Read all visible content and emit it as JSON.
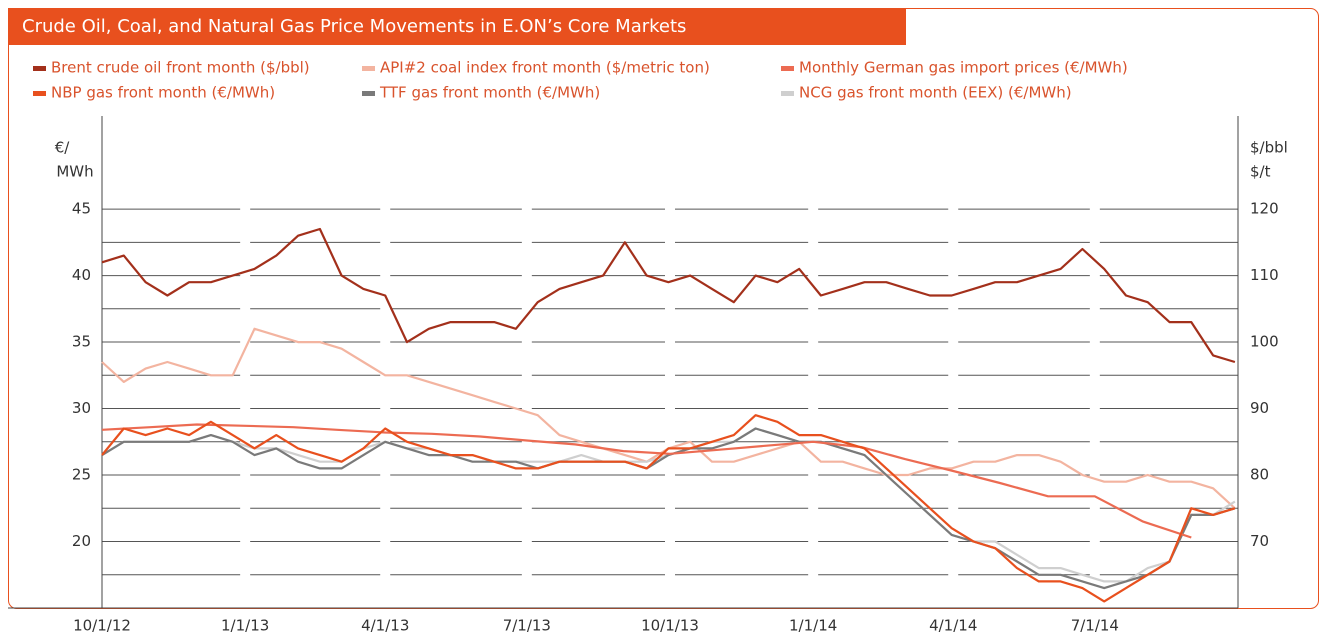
{
  "chart_data": {
    "type": "line",
    "title": "Crude Oil, Coal, and Natural Gas Price Movements in E.ON’s Core Markets",
    "ylabel_lines": [
      "€/",
      "MWh"
    ],
    "y2label_lines": [
      "$/bbl",
      "$/t"
    ],
    "legend": "top",
    "grid": true,
    "xlim": [
      "2012-10-01",
      "2014-10-01"
    ],
    "xticks": [
      {
        "value": "2012-10-01",
        "label": "10/1/12"
      },
      {
        "value": "2013-01-01",
        "label": "1/1/13"
      },
      {
        "value": "2013-04-01",
        "label": "4/1/13"
      },
      {
        "value": "2013-07-01",
        "label": "7/1/13"
      },
      {
        "value": "2013-10-01",
        "label": "10/1/13"
      },
      {
        "value": "2014-01-01",
        "label": "1/1/14"
      },
      {
        "value": "2014-04-01",
        "label": "4/1/14"
      },
      {
        "value": "2014-07-01",
        "label": "7/1/14"
      }
    ],
    "ylim": [
      15,
      52
    ],
    "yticks": [
      20,
      25,
      30,
      35,
      40,
      45
    ],
    "minor_grid": [
      17.5,
      22.5,
      27.5,
      32.5,
      37.5,
      42.5
    ],
    "y2lim": [
      60,
      134
    ],
    "y2ticks": [
      70,
      80,
      90,
      100,
      110,
      120
    ],
    "x": [
      "2012-10-01",
      "2012-10-15",
      "2012-10-29",
      "2012-11-12",
      "2012-11-26",
      "2012-12-10",
      "2012-12-24",
      "2013-01-07",
      "2013-01-21",
      "2013-02-04",
      "2013-02-18",
      "2013-03-04",
      "2013-03-18",
      "2013-04-01",
      "2013-04-15",
      "2013-04-29",
      "2013-05-13",
      "2013-05-27",
      "2013-06-10",
      "2013-06-24",
      "2013-07-08",
      "2013-07-22",
      "2013-08-05",
      "2013-08-19",
      "2013-09-02",
      "2013-09-16",
      "2013-09-30",
      "2013-10-14",
      "2013-10-28",
      "2013-11-11",
      "2013-11-25",
      "2013-12-09",
      "2013-12-23",
      "2014-01-06",
      "2014-01-20",
      "2014-02-03",
      "2014-02-17",
      "2014-03-03",
      "2014-03-17",
      "2014-03-31",
      "2014-04-14",
      "2014-04-28",
      "2014-05-12",
      "2014-05-26",
      "2014-06-09",
      "2014-06-23",
      "2014-07-07",
      "2014-07-21",
      "2014-08-04",
      "2014-08-18",
      "2014-09-01",
      "2014-09-15",
      "2014-09-29"
    ],
    "series": [
      {
        "name": "Brent crude oil front month ($/bbl)",
        "color": "#a3301b",
        "axis": "y2",
        "values": [
          112,
          113,
          109,
          107,
          109,
          109,
          110,
          111,
          113,
          116,
          117,
          110,
          108,
          107,
          100,
          102,
          103,
          103,
          103,
          102,
          106,
          108,
          109,
          110,
          115,
          110,
          109,
          110,
          108,
          106,
          110,
          109,
          111,
          107,
          108,
          109,
          109,
          108,
          107,
          107,
          108,
          109,
          109,
          110,
          111,
          114,
          111,
          107,
          106,
          103,
          103,
          98,
          97
        ]
      },
      {
        "name": "API#2 coal index front month ($/metric ton)",
        "color": "#f3b4a0",
        "axis": "y2",
        "values": [
          97,
          94,
          96,
          97,
          96,
          95,
          95,
          102,
          101,
          100,
          100,
          99,
          97,
          95,
          95,
          94,
          93,
          92,
          91,
          90,
          89,
          86,
          85,
          84,
          83,
          82,
          84,
          85,
          82,
          82,
          83,
          84,
          85,
          82,
          82,
          81,
          80,
          80,
          81,
          81,
          82,
          82,
          83,
          83,
          82,
          80,
          79,
          79,
          80,
          79,
          79,
          78,
          75
        ]
      },
      {
        "name": "Monthly German gas import prices (€/MWh)",
        "color": "#ec6b52",
        "x": [
          "2012-10-01",
          "2012-11-01",
          "2012-12-01",
          "2013-01-01",
          "2013-02-01",
          "2013-03-01",
          "2013-04-01",
          "2013-05-01",
          "2013-06-01",
          "2013-07-01",
          "2013-08-01",
          "2013-09-01",
          "2013-10-01",
          "2013-11-01",
          "2013-12-01",
          "2014-01-01",
          "2014-02-01",
          "2014-03-01",
          "2014-04-01",
          "2014-05-01",
          "2014-06-01",
          "2014-07-01",
          "2014-08-01",
          "2014-09-01"
        ],
        "values": [
          28.4,
          28.6,
          28.8,
          28.7,
          28.6,
          28.4,
          28.2,
          28.1,
          27.9,
          27.6,
          27.3,
          26.8,
          26.6,
          26.9,
          27.2,
          27.5,
          27.1,
          26.2,
          25.3,
          24.4,
          23.4,
          23.4,
          21.5,
          20.3
        ]
      },
      {
        "name": "NBP gas front month (€/MWh)",
        "color": "#e8501e",
        "values": [
          26.5,
          28.5,
          28,
          28.5,
          28,
          29,
          28,
          27,
          28,
          27,
          26.5,
          26,
          27,
          28.5,
          27.5,
          27,
          26.5,
          26.5,
          26,
          25.5,
          25.5,
          26,
          26,
          26,
          26,
          25.5,
          27,
          27,
          27.5,
          28,
          29.5,
          29,
          28,
          28,
          27.5,
          27,
          25.5,
          24,
          22.5,
          21,
          20,
          19.5,
          18,
          17,
          17,
          16.5,
          15.5,
          16.5,
          17.5,
          18.5,
          22.5,
          22,
          22.5
        ]
      },
      {
        "name": "TTF gas front month (€/MWh)",
        "color": "#7a7a7a",
        "values": [
          26.5,
          27.5,
          27.5,
          27.5,
          27.5,
          28,
          27.5,
          26.5,
          27,
          26,
          25.5,
          25.5,
          26.5,
          27.5,
          27,
          26.5,
          26.5,
          26,
          26,
          26,
          25.5,
          26,
          26,
          26,
          26,
          25.5,
          26.5,
          27,
          27,
          27.5,
          28.5,
          28,
          27.5,
          27.5,
          27,
          26.5,
          25,
          23.5,
          22,
          20.5,
          20,
          19.5,
          18.5,
          17.5,
          17.5,
          17,
          16.5,
          17,
          17.5,
          18.5,
          22,
          22,
          22.5
        ]
      },
      {
        "name": "NCG gas front month (EEX) (€/MWh)",
        "color": "#cfcfcf",
        "values": [
          26.5,
          27.5,
          27.5,
          27.5,
          27.5,
          28,
          27.5,
          27,
          27,
          26.5,
          26,
          26,
          27,
          27.5,
          27,
          27,
          26.5,
          26.5,
          26,
          26,
          26,
          26,
          26.5,
          26,
          26,
          26,
          26.5,
          27,
          27.5,
          27.5,
          28.5,
          28,
          27.5,
          27.5,
          27,
          26.5,
          25,
          23.5,
          22,
          20.5,
          20,
          20,
          19,
          18,
          18,
          17.5,
          17,
          17,
          18,
          18.5,
          22,
          22,
          23
        ]
      }
    ]
  }
}
